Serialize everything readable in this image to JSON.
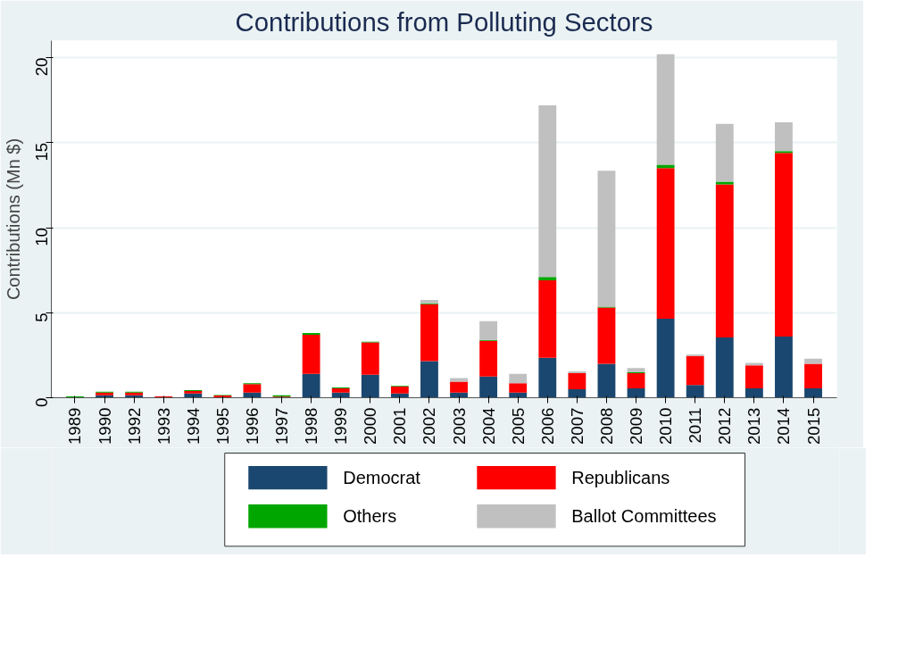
{
  "chart_data": {
    "type": "bar",
    "stacked": true,
    "title": "Contributions from Polluting Sectors",
    "ylabel": "Contributions (Mn $)",
    "categories": [
      "1989",
      "1990",
      "1992",
      "1993",
      "1994",
      "1995",
      "1996",
      "1997",
      "1998",
      "1999",
      "2000",
      "2001",
      "2002",
      "2003",
      "2004",
      "2005",
      "2006",
      "2007",
      "2008",
      "2009",
      "2010",
      "2011",
      "2012",
      "2013",
      "2014",
      "2015"
    ],
    "series": [
      {
        "name": "Democrat",
        "color": "#1a476f",
        "values": [
          0,
          0.15,
          0.15,
          0,
          0.25,
          0.03,
          0.3,
          0.02,
          1.4,
          0.3,
          1.35,
          0.25,
          2.15,
          0.3,
          1.25,
          0.3,
          2.35,
          0.5,
          2.0,
          0.55,
          4.65,
          0.75,
          3.55,
          0.55,
          3.6,
          0.55
        ]
      },
      {
        "name": "Republicans",
        "color": "#ff0000",
        "values": [
          0,
          0.15,
          0.15,
          0.08,
          0.15,
          0.1,
          0.5,
          0.05,
          2.3,
          0.25,
          1.9,
          0.4,
          3.35,
          0.65,
          2.1,
          0.55,
          4.55,
          0.95,
          3.3,
          0.9,
          8.85,
          1.7,
          9.0,
          1.35,
          10.8,
          1.45
        ]
      },
      {
        "name": "Others",
        "color": "#00a600",
        "values": [
          0.08,
          0.05,
          0.05,
          0,
          0.05,
          0.03,
          0.05,
          0.08,
          0.1,
          0.05,
          0.05,
          0.05,
          0.05,
          0,
          0.05,
          0,
          0.2,
          0,
          0.05,
          0.05,
          0.2,
          0,
          0.15,
          0,
          0.1,
          0
        ]
      },
      {
        "name": "Ballot Committees",
        "color": "#c0c0c0",
        "values": [
          0,
          0,
          0,
          0,
          0,
          0,
          0,
          0,
          0,
          0,
          0,
          0,
          0.2,
          0.2,
          1.1,
          0.55,
          10.1,
          0.1,
          8.0,
          0.25,
          6.5,
          0.1,
          3.4,
          0.15,
          1.7,
          0.3
        ]
      }
    ],
    "ylim": [
      0,
      21
    ],
    "yticks": [
      0,
      5,
      10,
      15,
      20
    ],
    "grid": "y",
    "legend": "bottom"
  }
}
